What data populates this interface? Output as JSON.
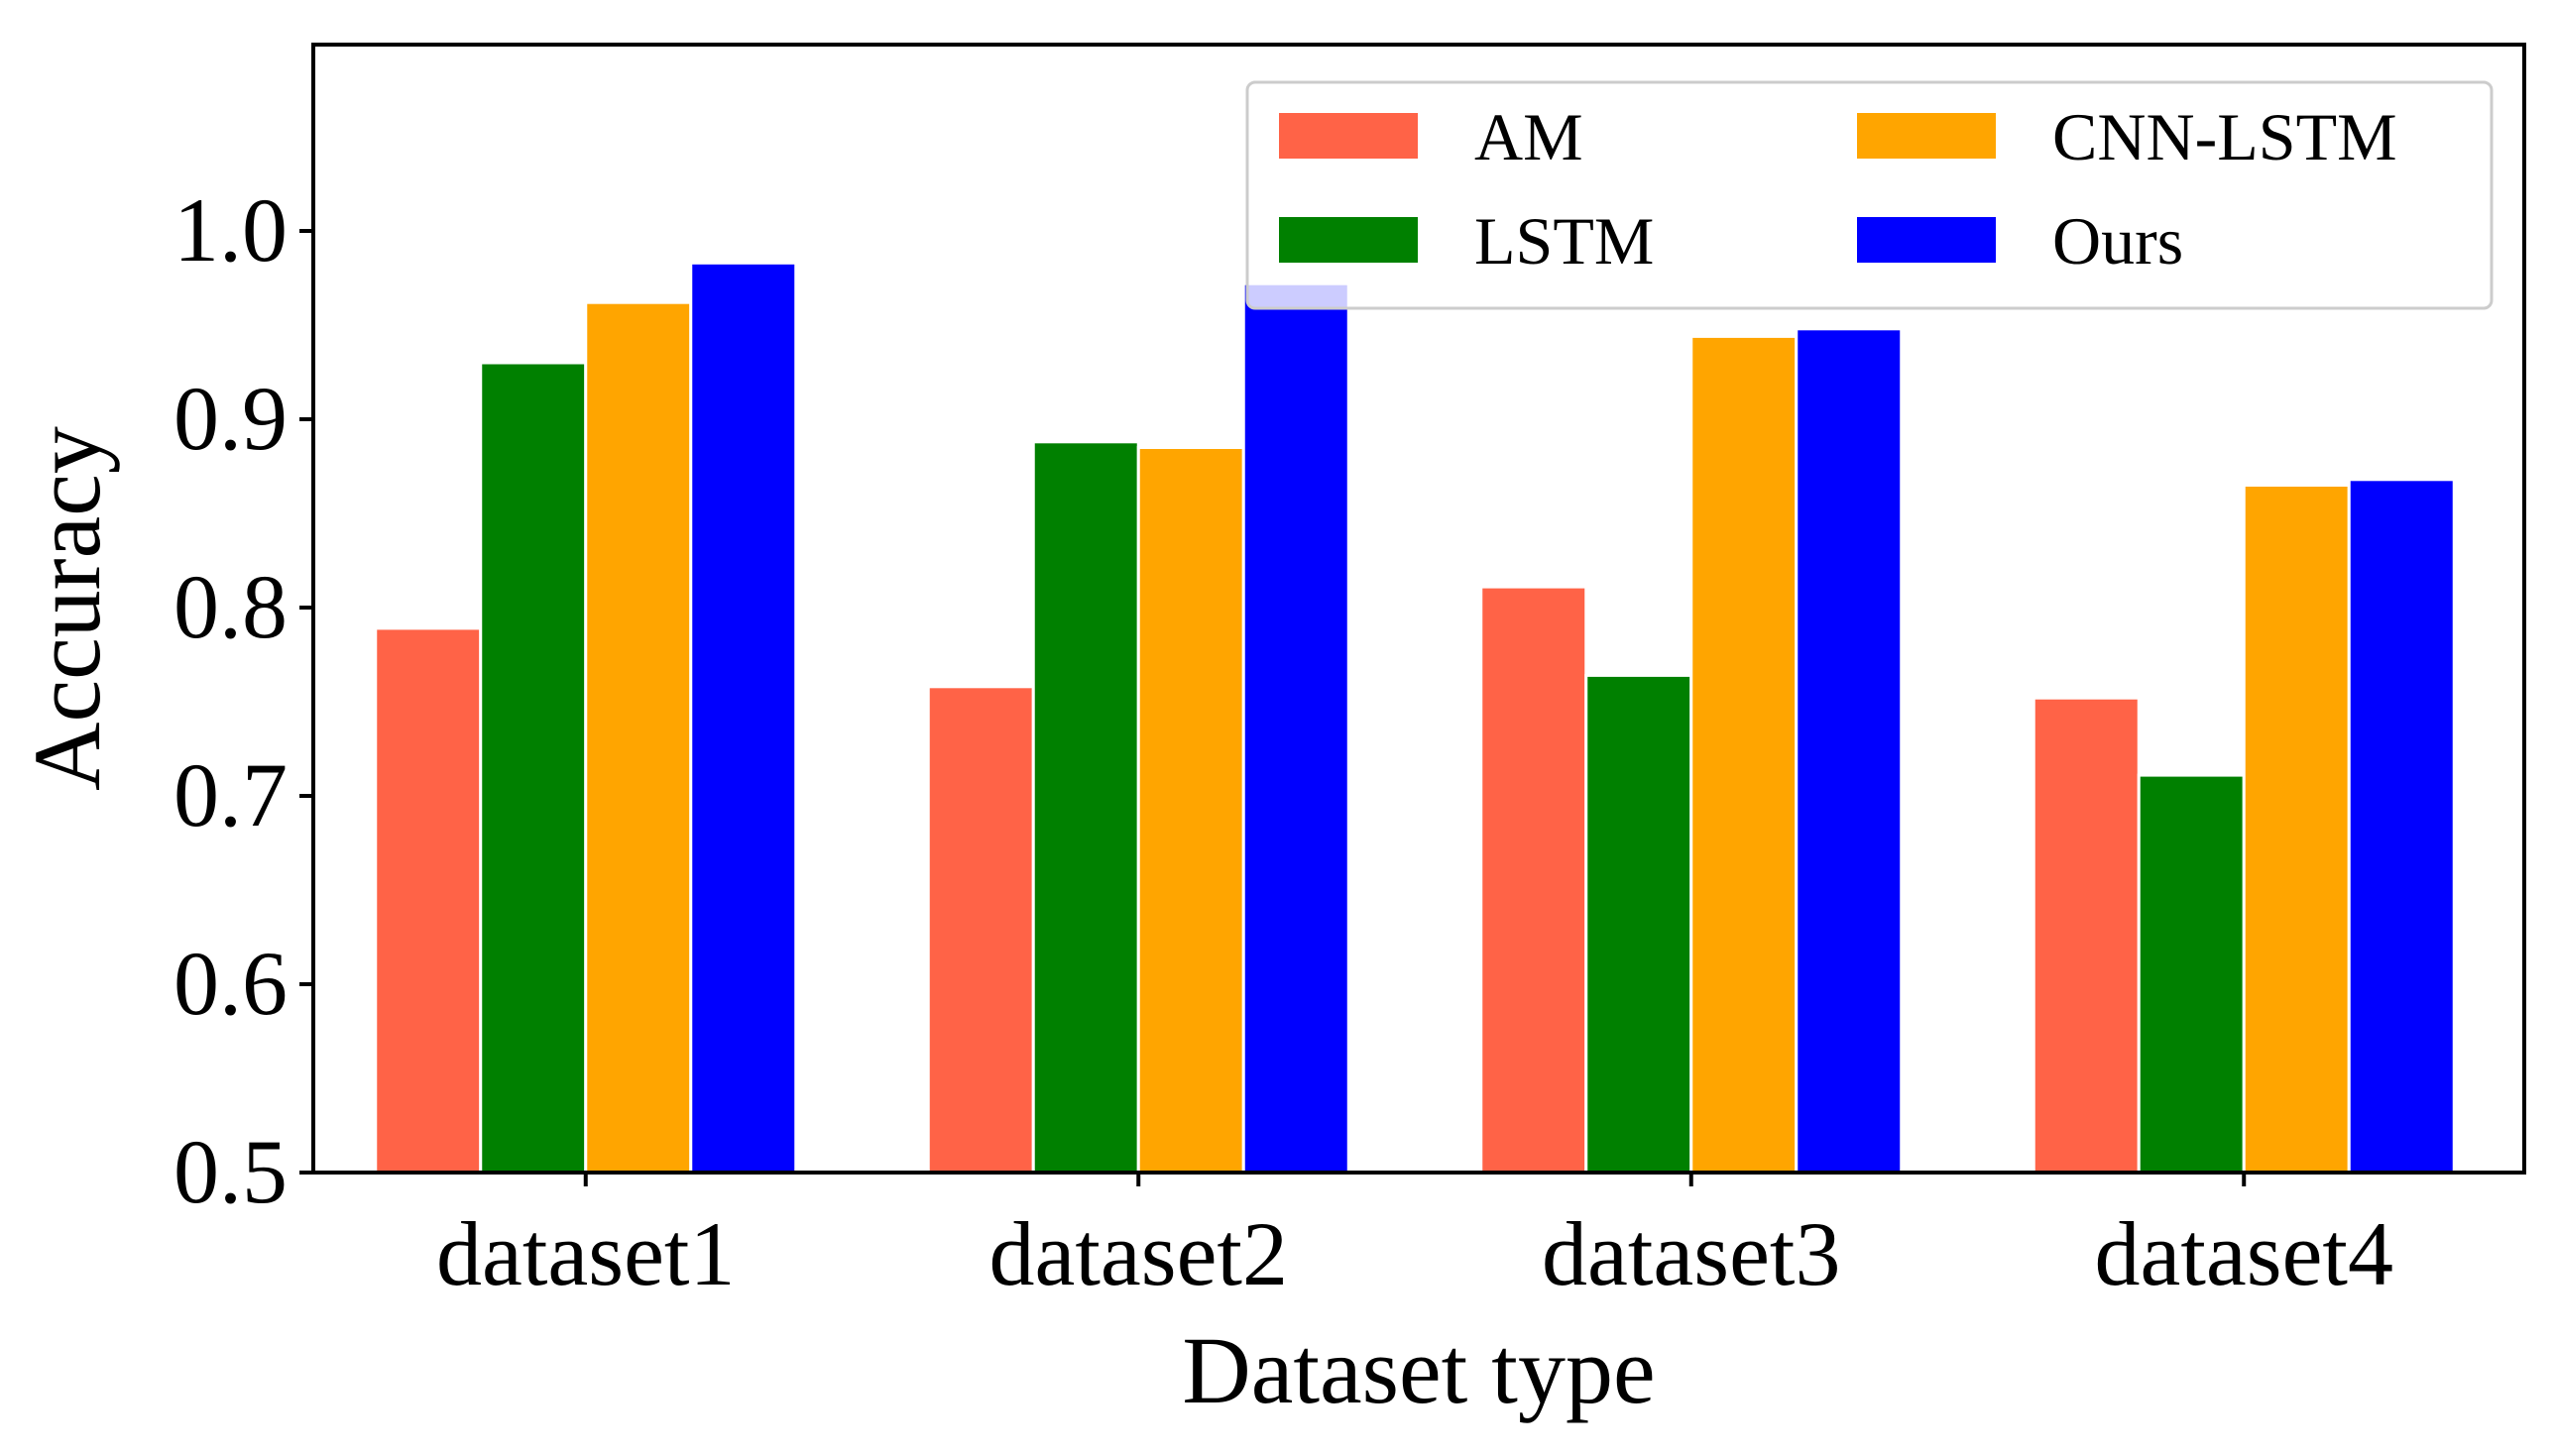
{
  "chart_data": {
    "type": "bar",
    "title": "",
    "xlabel": "Dataset type",
    "ylabel": "Accuracy",
    "categories": [
      "dataset1",
      "dataset2",
      "dataset3",
      "dataset4"
    ],
    "ylim": [
      0.5,
      1.1
    ],
    "yticks": [
      0.5,
      0.6,
      0.7,
      0.8,
      0.9,
      1.0
    ],
    "ytick_labels": [
      "0.5",
      "0.6",
      "0.7",
      "0.8",
      "0.9",
      "1.0"
    ],
    "legend_position": "top-right",
    "grid": false,
    "series": [
      {
        "name": "AM",
        "color": "#FF6347",
        "values": [
          0.789,
          0.758,
          0.811,
          0.752
        ]
      },
      {
        "name": "LSTM",
        "color": "#008000",
        "values": [
          0.93,
          0.888,
          0.764,
          0.711
        ]
      },
      {
        "name": "CNN-LSTM",
        "color": "#FFA500",
        "values": [
          0.962,
          0.885,
          0.944,
          0.865
        ]
      },
      {
        "name": "Ours",
        "color": "#0000FF",
        "values": [
          0.983,
          0.972,
          0.948,
          0.868
        ]
      }
    ]
  }
}
